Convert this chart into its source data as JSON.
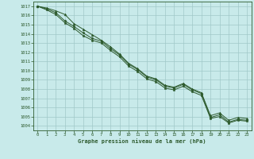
{
  "title": "Graphe pression niveau de la mer (hPa)",
  "background_color": "#c8eaea",
  "grid_color": "#a0c8c8",
  "line_color": "#2d5a2d",
  "marker_color": "#2d5a2d",
  "xlim": [
    -0.5,
    23.5
  ],
  "ylim": [
    1003.5,
    1017.5
  ],
  "xticks": [
    0,
    1,
    2,
    3,
    4,
    5,
    6,
    7,
    8,
    9,
    10,
    11,
    12,
    13,
    14,
    15,
    16,
    17,
    18,
    19,
    20,
    21,
    22,
    23
  ],
  "yticks": [
    1004,
    1005,
    1006,
    1007,
    1008,
    1009,
    1010,
    1011,
    1012,
    1013,
    1014,
    1015,
    1016,
    1017
  ],
  "series1_x": [
    0,
    1,
    2,
    3,
    4,
    5,
    6,
    7,
    8,
    9,
    10,
    11,
    12,
    13,
    14,
    15,
    16,
    17,
    18,
    19,
    20,
    21,
    22,
    23
  ],
  "series1_y": [
    1017.0,
    1016.8,
    1016.5,
    1016.1,
    1015.1,
    1014.5,
    1013.9,
    1013.3,
    1012.6,
    1011.8,
    1010.8,
    1010.2,
    1009.4,
    1009.1,
    1008.4,
    1008.2,
    1008.6,
    1008.0,
    1007.6,
    1005.1,
    1005.4,
    1004.6,
    1004.9,
    1004.8
  ],
  "series2_x": [
    0,
    1,
    2,
    3,
    4,
    5,
    6,
    7,
    8,
    9,
    10,
    11,
    12,
    13,
    14,
    15,
    16,
    17,
    18,
    19,
    20,
    21,
    22,
    23
  ],
  "series2_y": [
    1017.0,
    1016.7,
    1016.3,
    1015.4,
    1014.8,
    1014.1,
    1013.5,
    1013.2,
    1012.4,
    1011.7,
    1010.7,
    1010.1,
    1009.3,
    1009.0,
    1008.3,
    1008.1,
    1008.5,
    1007.9,
    1007.5,
    1004.9,
    1005.2,
    1004.4,
    1004.7,
    1004.6
  ],
  "series3_x": [
    0,
    1,
    2,
    3,
    4,
    5,
    6,
    7,
    8,
    9,
    10,
    11,
    12,
    13,
    14,
    15,
    16,
    17,
    18,
    19,
    20,
    21,
    22,
    23
  ],
  "series3_y": [
    1017.0,
    1016.6,
    1016.1,
    1015.2,
    1014.6,
    1013.8,
    1013.3,
    1013.0,
    1012.2,
    1011.5,
    1010.5,
    1009.9,
    1009.1,
    1008.8,
    1008.1,
    1007.9,
    1008.3,
    1007.7,
    1007.3,
    1004.8,
    1005.0,
    1004.3,
    1004.6,
    1004.5
  ]
}
